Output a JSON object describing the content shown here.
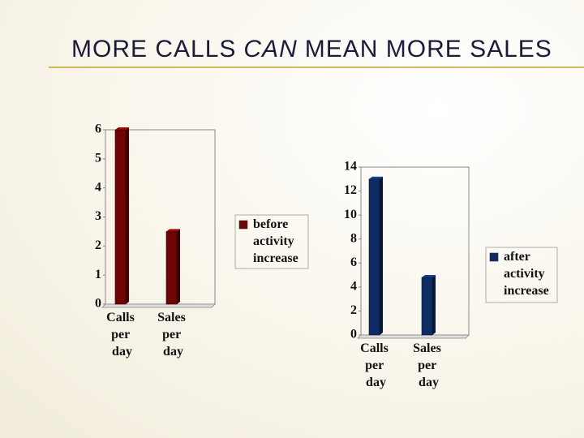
{
  "title_parts": [
    "MORE CALLS",
    "CAN",
    "MEAN MORE SALES"
  ],
  "chart_data": [
    {
      "type": "bar",
      "categories": [
        "Calls per day",
        "Sales per day"
      ],
      "series": [
        {
          "name": "before activity increase",
          "color": "#6e0505",
          "values": [
            6,
            2.5
          ]
        }
      ],
      "ylim": [
        0,
        6
      ],
      "yticks": [
        0,
        1,
        2,
        3,
        4,
        5,
        6
      ],
      "legend": "right"
    },
    {
      "type": "bar",
      "categories": [
        "Calls per day",
        "Sales per day"
      ],
      "series": [
        {
          "name": "after activity increase",
          "color": "#0e2c63",
          "values": [
            13,
            4.8
          ]
        }
      ],
      "ylim": [
        0,
        14
      ],
      "yticks": [
        0,
        2,
        4,
        6,
        8,
        10,
        12,
        14
      ],
      "legend": "right"
    }
  ]
}
